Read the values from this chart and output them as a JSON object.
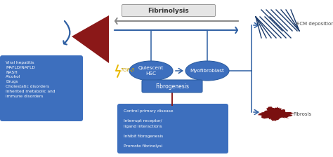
{
  "title": "Fibrinolysis",
  "bg_color": "#ffffff",
  "dark_blue": "#1a3a6b",
  "medium_blue": "#2e5fa3",
  "box_blue": "#3d6fbe",
  "red": "#8b1a1a",
  "left_box_text": "Viral hepatitis\nMAFLD/NAFLD\nNASH\nAlcohol\nDrugs\nCholestatic disorders\nInherited metabolic and\nimmune disorders",
  "bottom_box_text": "Control primary disease\n\nInterrupt receptor/\nligand interactions\n\nInhibit fibrogenesis\n\nPromote fibrinolysi",
  "ecm_label": "ECM deposition",
  "fibrosis_label": "Fibrosis",
  "tgf_label": "TGF-β",
  "hsc_label": "Quiescent\nHSC",
  "myofib_label": "Myofibroblast",
  "fibrogen_label": "Fibrogenesis",
  "arrow_grey": "#888888"
}
